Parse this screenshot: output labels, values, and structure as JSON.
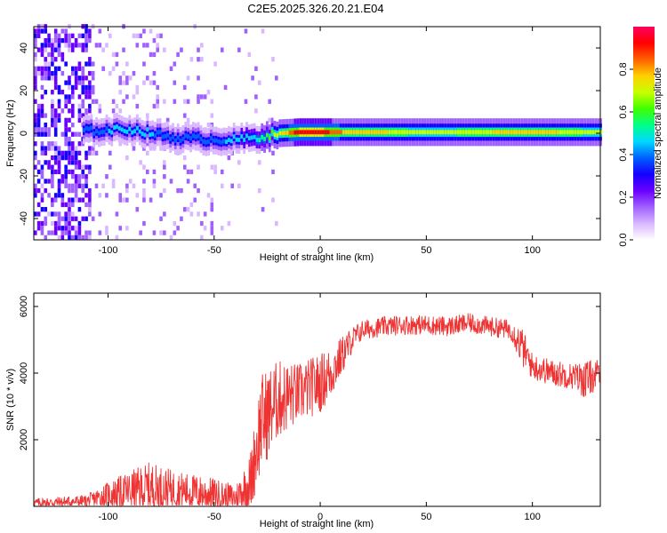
{
  "title": "C2E5.2025.326.20.21.E04",
  "colors": {
    "snr_line": "#ee3333",
    "colormap": [
      "#ffffff",
      "#d9b8ff",
      "#a060ff",
      "#6a00ff",
      "#1400ff",
      "#0060ff",
      "#00d8ff",
      "#00ff88",
      "#40ff00",
      "#c8ff00",
      "#ffd000",
      "#ff6000",
      "#ff0000",
      "#ff0060"
    ]
  },
  "chart_data": [
    {
      "type": "heatmap",
      "xlabel": "Height of straight line (km)",
      "ylabel": "Frequency (Hz)",
      "xlim": [
        -135,
        132
      ],
      "ylim": [
        -50,
        50
      ],
      "xticks": [
        -100,
        -50,
        0,
        50,
        100
      ],
      "xtick_labels": [
        "-100",
        "-50",
        "0",
        "50",
        "100"
      ],
      "yticks": [
        -40,
        -20,
        0,
        20,
        40
      ],
      "ytick_labels": [
        "-40",
        "-20",
        "0",
        "20",
        "40"
      ],
      "colorbar": {
        "label": "Normalized spectral amplitude",
        "range": [
          0.0,
          1.0
        ],
        "ticks": [
          0.0,
          0.2,
          0.4,
          0.6,
          0.8
        ],
        "tick_labels": [
          "0.0",
          "0.2",
          "0.4",
          "0.6",
          "0.8"
        ]
      },
      "ridge": {
        "description_points_x": [
          -110,
          -90,
          -70,
          -50,
          -40,
          -30,
          -20,
          -10,
          0,
          10,
          20,
          50,
          100,
          132
        ],
        "description_points_freq": [
          1,
          2,
          -2,
          -3,
          -3,
          -2,
          0,
          0.5,
          0.5,
          0.5,
          0.5,
          0.5,
          0.5,
          0.5
        ],
        "amplitude": [
          0.4,
          0.45,
          0.4,
          0.4,
          0.45,
          0.5,
          0.7,
          0.95,
          0.95,
          0.8,
          0.75,
          0.7,
          0.75,
          0.7
        ]
      }
    },
    {
      "type": "line",
      "xlabel": "Height of straight line (km)",
      "ylabel": "SNR (10 * v/v)",
      "xlim": [
        -135,
        132
      ],
      "ylim": [
        0,
        6400
      ],
      "xticks": [
        -100,
        -50,
        0,
        50,
        100
      ],
      "xtick_labels": [
        "-100",
        "-50",
        "0",
        "50",
        "100"
      ],
      "yticks": [
        2000,
        4000,
        6000
      ],
      "ytick_labels": [
        "2000",
        "4000",
        "6000"
      ],
      "series": [
        {
          "envelope_x": [
            -135,
            -110,
            -100,
            -80,
            -70,
            -50,
            -40,
            -33,
            -28,
            -20,
            -10,
            0,
            5,
            10,
            15,
            20,
            30,
            40,
            50,
            60,
            70,
            80,
            90,
            95,
            100,
            110,
            120,
            125,
            132
          ],
          "envelope_mean": [
            100,
            150,
            350,
            550,
            500,
            350,
            250,
            700,
            2500,
            3200,
            3400,
            3700,
            4000,
            4500,
            5000,
            5300,
            5400,
            5450,
            5450,
            5400,
            5500,
            5400,
            5300,
            4800,
            4200,
            4000,
            3900,
            3800,
            4000
          ],
          "envelope_amp": [
            150,
            200,
            400,
            800,
            600,
            500,
            400,
            900,
            1500,
            1200,
            900,
            900,
            800,
            600,
            400,
            300,
            300,
            300,
            300,
            300,
            300,
            300,
            300,
            600,
            400,
            400,
            400,
            600,
            400
          ]
        }
      ]
    }
  ]
}
